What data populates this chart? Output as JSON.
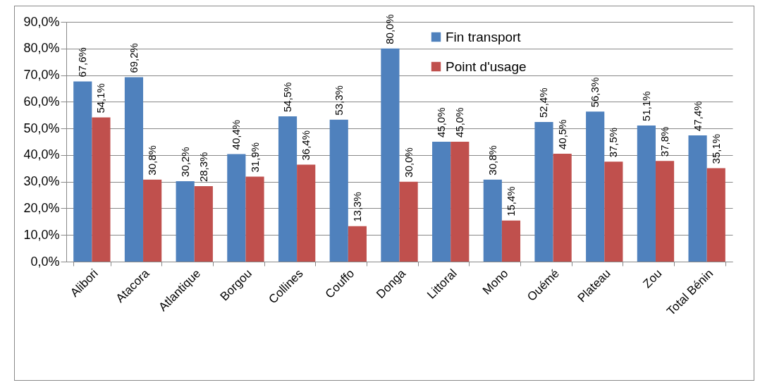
{
  "chart_data": {
    "type": "bar",
    "categories": [
      "Alibori",
      "Atacora",
      "Atlantique",
      "Borgou",
      "Collines",
      "Couffo",
      "Donga",
      "Littoral",
      "Mono",
      "Ouémé",
      "Plateau",
      "Zou",
      "Total Bénin"
    ],
    "series": [
      {
        "name": "Fin transport",
        "color": "#4f81bd",
        "values": [
          67.6,
          69.2,
          30.2,
          40.4,
          54.5,
          53.3,
          80.0,
          45.0,
          30.8,
          52.4,
          56.3,
          51.1,
          47.4
        ],
        "value_labels": [
          "67,6%",
          "69,2%",
          "30,2%",
          "40,4%",
          "54,5%",
          "53,3%",
          "80,0%",
          "45,0%",
          "30,8%",
          "52,4%",
          "56,3%",
          "51,1%",
          "47,4%"
        ]
      },
      {
        "name": "Point d'usage",
        "color": "#c0504d",
        "values": [
          54.1,
          30.8,
          28.3,
          31.9,
          36.4,
          13.3,
          30.0,
          45.0,
          15.4,
          40.5,
          37.5,
          37.8,
          35.1
        ],
        "value_labels": [
          "54,1%",
          "30,8%",
          "28,3%",
          "31,9%",
          "36,4%",
          "13,3%",
          "30,0%",
          "45,0%",
          "15,4%",
          "40,5%",
          "37,5%",
          "37,8%",
          "35,1%"
        ]
      }
    ],
    "ylim": [
      0,
      90
    ],
    "yticks": [
      {
        "value": 0,
        "label": "0,0%"
      },
      {
        "value": 10,
        "label": "10,0%"
      },
      {
        "value": 20,
        "label": "20,0%"
      },
      {
        "value": 30,
        "label": "30,0%"
      },
      {
        "value": 40,
        "label": "40,0%"
      },
      {
        "value": 50,
        "label": "50,0%"
      },
      {
        "value": 60,
        "label": "60,0%"
      },
      {
        "value": 70,
        "label": "70,0%"
      },
      {
        "value": 80,
        "label": "80,0%"
      },
      {
        "value": 90,
        "label": "90,0%"
      }
    ],
    "grid": true,
    "legend": "top"
  }
}
